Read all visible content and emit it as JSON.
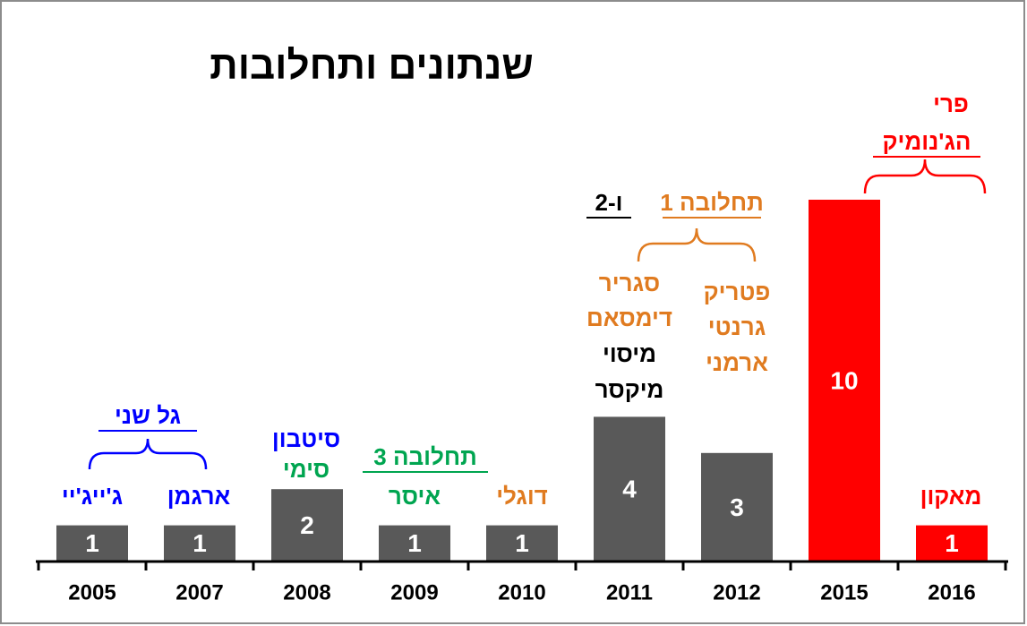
{
  "chart_data": {
    "type": "bar",
    "title": "שנתונים ותחלובות",
    "categories": [
      "2005",
      "2007",
      "2008",
      "2009",
      "2010",
      "2011",
      "2012",
      "2015",
      "2016"
    ],
    "values": [
      1,
      1,
      2,
      1,
      1,
      4,
      3,
      10,
      1
    ],
    "colors": [
      "#595959",
      "#595959",
      "#595959",
      "#595959",
      "#595959",
      "#595959",
      "#595959",
      "#ff0000",
      "#ff0000"
    ],
    "ylim": [
      0,
      14
    ],
    "annotations": [
      {
        "text": "ג'ייג'יי",
        "color": "#0000ff"
      },
      {
        "text": "ארגמן",
        "color": "#0000ff"
      },
      {
        "text": "גל שני",
        "color": "#0000ff"
      },
      {
        "text": "סיטבון",
        "color": "#0000ff"
      },
      {
        "text": "סימי",
        "color": "#00a550"
      },
      {
        "text": "תחלובה 3",
        "color": "#00a550"
      },
      {
        "text": "איסר",
        "color": "#00a550"
      },
      {
        "text": "דוגלי",
        "color": "#e07b20"
      },
      {
        "text": "סגריר",
        "color": "#e07b20"
      },
      {
        "text": "דימסאם",
        "color": "#e07b20"
      },
      {
        "text": "מיסוי",
        "color": "#000000"
      },
      {
        "text": "מיקסר",
        "color": "#000000"
      },
      {
        "text": "פטריק",
        "color": "#e07b20"
      },
      {
        "text": "גרנטי",
        "color": "#e07b20"
      },
      {
        "text": "ארמני",
        "color": "#e07b20"
      },
      {
        "text": "תחלובה 1",
        "color": "#e07b20"
      },
      {
        "text": "ו-2",
        "color": "#000000"
      },
      {
        "text": "פרי",
        "color": "#ff0000"
      },
      {
        "text": "הג'נומיק",
        "color": "#ff0000"
      },
      {
        "text": "מאקון",
        "color": "#ff0000"
      }
    ]
  }
}
